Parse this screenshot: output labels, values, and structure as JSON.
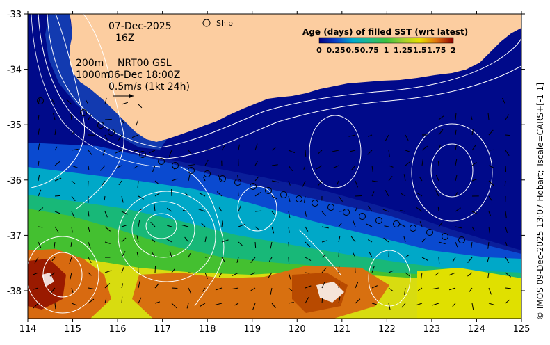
{
  "map": {
    "x_ticks": [
      "114",
      "115",
      "116",
      "117",
      "118",
      "119",
      "120",
      "121",
      "122",
      "123",
      "124",
      "125"
    ],
    "y_ticks": [
      "-33",
      "-34",
      "-35",
      "-36",
      "-37",
      "-38"
    ],
    "date_line": "07-Dec-2025",
    "hour_line": "16Z",
    "depth_200": "200m",
    "depth_1000": "1000m",
    "product": "NRT00 GSL",
    "product_time": "06-Dec 18:00Z",
    "velocity_scale": "0.5m/s (1kt 24h)",
    "ship_label": "Ship",
    "colorbar_title": "Age (days) of filled SST (wrt latest)",
    "colorbar_ticks": [
      "0",
      "0.25",
      "0.5",
      "0.75",
      "1",
      "1.25",
      "1.5",
      "1.75",
      "2"
    ],
    "credit": "© IMOS 09-Dec-2025 13:07 Hobart; Tscale=CARS+[-1 1]",
    "colors": {
      "land": "#fccda0",
      "age_0": "#000080",
      "age_025": "#0a3fc8",
      "age_05": "#00aacc",
      "age_075": "#20b88a",
      "age_1": "#3cc040",
      "age_125": "#a0d030",
      "age_15": "#e8e000",
      "age_175": "#e07010",
      "age_2": "#8a0000"
    }
  }
}
